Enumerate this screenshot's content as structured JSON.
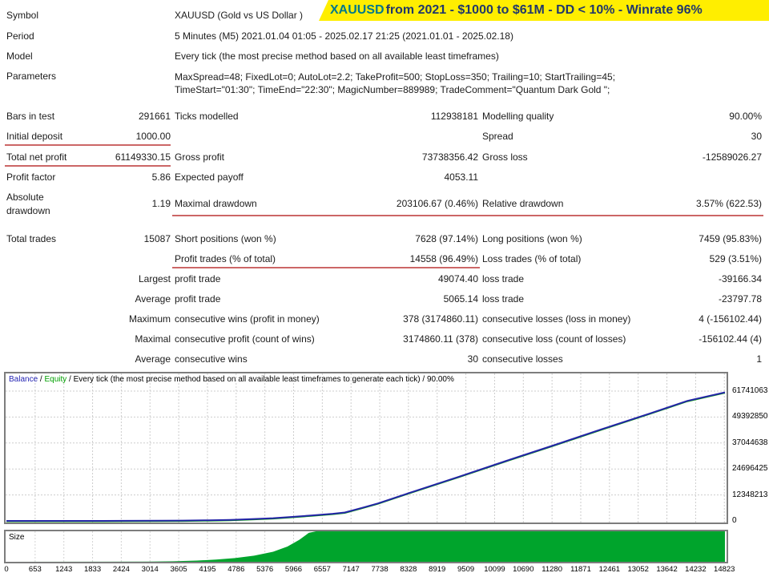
{
  "banner": {
    "symbol": "XAUUSD",
    "rest": " from 2021 - $1000 to $61M - DD < 10% - Winrate 96%",
    "bg_color": "#ffee00",
    "symbol_color": "#00788c",
    "text_color": "#21386b"
  },
  "report": {
    "info_rows": [
      {
        "label": "Symbol",
        "value": "XAUUSD (Gold vs US Dollar )"
      },
      {
        "label": "Period",
        "value": "5 Minutes (M5) 2021.01.04 01:05 - 2025.02.17 21:25 (2021.01.01 - 2025.02.18)"
      },
      {
        "label": "Model",
        "value": "Every tick (the most precise method based on all available least timeframes)"
      },
      {
        "label": "Parameters",
        "value_lines": [
          "MaxSpread=48; FixedLot=0; AutoLot=2.2; TakeProfit=500; StopLoss=350; Trailing=10; StartTrailing=45;",
          "TimeStart=\"01:30\"; TimeEnd=\"22:30\"; MagicNumber=889989; TradeComment=\"Quantum Dark Gold \";"
        ]
      }
    ],
    "stat_rows": [
      {
        "cells": [
          "Bars in test",
          "291661",
          "Ticks modelled",
          "112938181",
          "Modelling quality",
          "90.00%"
        ]
      },
      {
        "cells": [
          "Initial deposit",
          "1000.00",
          "",
          "",
          "Spread",
          "30"
        ]
      },
      {
        "cells": [
          "Total net profit",
          "61149330.15",
          "Gross profit",
          "73738356.42",
          "Gross loss",
          "-12589026.27"
        ]
      },
      {
        "cells": [
          "Profit factor",
          "5.86",
          "Expected payoff",
          "4053.11",
          "",
          ""
        ]
      },
      {
        "cells": [
          "Absolute drawdown",
          "1.19",
          "Maximal drawdown",
          "203106.67 (0.46%)",
          "Relative drawdown",
          "3.57% (622.53)"
        ],
        "wrap_label": true
      },
      {
        "cells": [
          "Total trades",
          "15087",
          "Short positions (won %)",
          "7628 (97.14%)",
          "Long positions (won %)",
          "7459 (95.83%)"
        ]
      },
      {
        "cells": [
          "",
          "",
          "Profit trades (% of total)",
          "14558 (96.49%)",
          "Loss trades (% of total)",
          "529 (3.51%)"
        ]
      },
      {
        "cells": [
          "",
          "Largest",
          "profit trade",
          "49074.40",
          "loss trade",
          "-39166.34"
        ]
      },
      {
        "cells": [
          "",
          "Average",
          "profit trade",
          "5065.14",
          "loss trade",
          "-23797.78"
        ]
      },
      {
        "cells": [
          "",
          "Maximum",
          "consecutive wins (profit in money)",
          "378 (3174860.11)",
          "consecutive losses (loss in money)",
          "4 (-156102.44)"
        ]
      },
      {
        "cells": [
          "",
          "Maximal",
          "consecutive profit (count of wins)",
          "3174860.11 (378)",
          "consecutive loss (count of losses)",
          "-156102.44 (4)"
        ]
      },
      {
        "cells": [
          "",
          "Average",
          "consecutive wins",
          "30",
          "consecutive losses",
          "1"
        ]
      }
    ]
  },
  "chart_data": [
    {
      "type": "line",
      "title": "Balance / Equity / Every tick (the most precise method based on all available least timeframes to generate each tick) / 90.00%",
      "header": {
        "sep": " / ",
        "tail": "Every tick (the most precise method based on all available least timeframes to generate each tick) / 90.00%"
      },
      "legend": [
        {
          "name": "Balance",
          "color": "#2424b4"
        },
        {
          "name": "Equity",
          "color": "#00a000"
        }
      ],
      "legend_position": "top-left",
      "grid": true,
      "xlim": [
        0,
        15087
      ],
      "ylim": [
        0,
        61741063
      ],
      "x_ticks": [
        0,
        653,
        1243,
        1833,
        2424,
        3014,
        3605,
        4195,
        4786,
        5376,
        5966,
        6557,
        7147,
        7738,
        8328,
        8919,
        9509,
        10099,
        10690,
        11280,
        11871,
        12461,
        13052,
        13642,
        14232,
        14823
      ],
      "y_ticks": [
        0,
        12348213,
        24696425,
        37044638,
        49392850,
        61741063
      ],
      "series": [
        {
          "name": "Balance",
          "color": "#2424a8",
          "points": [
            [
              0,
              1000
            ],
            [
              1500,
              12000
            ],
            [
              2500,
              40000
            ],
            [
              3200,
              90000
            ],
            [
              3700,
              160000
            ],
            [
              4250,
              300000
            ],
            [
              4700,
              500000
            ],
            [
              5200,
              900000
            ],
            [
              5600,
              1300000
            ],
            [
              6000,
              1900000
            ],
            [
              6400,
              2600000
            ],
            [
              6850,
              3400000
            ],
            [
              7107,
              4000000
            ],
            [
              7500,
              6400000
            ],
            [
              7800,
              8300000
            ],
            [
              8500,
              13600000
            ],
            [
              9500,
              21000000
            ],
            [
              10500,
              28600000
            ],
            [
              11500,
              36000000
            ],
            [
              12500,
              43600000
            ],
            [
              13500,
              51000000
            ],
            [
              14300,
              57100000
            ],
            [
              15087,
              61149330
            ]
          ]
        }
      ]
    },
    {
      "type": "area",
      "label": "Size",
      "fill_color": "#00a42c",
      "xlim": [
        0,
        15087
      ],
      "ylim_normalized": [
        0,
        1
      ],
      "points_normalized": [
        [
          0,
          0
        ],
        [
          3000,
          0.004
        ],
        [
          3500,
          0.015
        ],
        [
          4000,
          0.04
        ],
        [
          4400,
          0.07
        ],
        [
          4800,
          0.12
        ],
        [
          5200,
          0.2
        ],
        [
          5600,
          0.33
        ],
        [
          5900,
          0.5
        ],
        [
          6150,
          0.72
        ],
        [
          6350,
          0.95
        ],
        [
          6500,
          1.0
        ],
        [
          15087,
          1.0
        ]
      ]
    }
  ]
}
